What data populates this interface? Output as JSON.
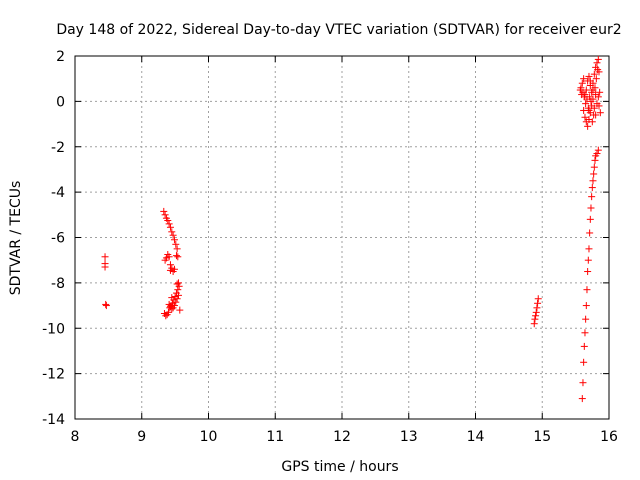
{
  "chart_data": {
    "type": "scatter",
    "title": "Day 148 of 2022, Sidereal Day-to-day VTEC variation (SDTVAR) for receiver eur2",
    "xlabel": "GPS time / hours",
    "ylabel": "SDTVAR / TECUs",
    "xlim": [
      8,
      16
    ],
    "ylim": [
      -14,
      2
    ],
    "x_ticks": [
      8,
      9,
      10,
      11,
      12,
      13,
      14,
      15,
      16
    ],
    "y_ticks": [
      -14,
      -12,
      -10,
      -8,
      -6,
      -4,
      -2,
      0,
      2
    ],
    "x_tick_labels": [
      "8",
      "9",
      "10",
      "11",
      "12",
      "13",
      "14",
      "15",
      "16"
    ],
    "y_tick_labels": [
      "-14",
      "-12",
      "-10",
      "-8",
      "-6",
      "-4",
      "-2",
      "0",
      "2"
    ],
    "grid": true,
    "marker": "+",
    "color": "#ff0000",
    "series": [
      {
        "name": "SDTVAR",
        "points": [
          [
            8.45,
            -6.85
          ],
          [
            8.45,
            -7.15
          ],
          [
            8.45,
            -7.3
          ],
          [
            8.46,
            -8.95
          ],
          [
            8.47,
            -9.0
          ],
          [
            9.33,
            -4.85
          ],
          [
            9.35,
            -5.0
          ],
          [
            9.37,
            -5.15
          ],
          [
            9.39,
            -5.25
          ],
          [
            9.41,
            -5.4
          ],
          [
            9.43,
            -5.55
          ],
          [
            9.45,
            -5.75
          ],
          [
            9.47,
            -5.9
          ],
          [
            9.49,
            -6.1
          ],
          [
            9.51,
            -6.3
          ],
          [
            9.53,
            -6.5
          ],
          [
            9.52,
            -6.8
          ],
          [
            9.54,
            -6.85
          ],
          [
            9.35,
            -7.0
          ],
          [
            9.37,
            -6.9
          ],
          [
            9.39,
            -6.75
          ],
          [
            9.41,
            -6.85
          ],
          [
            9.43,
            -7.2
          ],
          [
            9.45,
            -7.35
          ],
          [
            9.47,
            -7.5
          ],
          [
            9.43,
            -7.45
          ],
          [
            9.49,
            -7.4
          ],
          [
            9.34,
            -9.35
          ],
          [
            9.36,
            -9.45
          ],
          [
            9.38,
            -9.4
          ],
          [
            9.4,
            -9.3
          ],
          [
            9.42,
            -9.1
          ],
          [
            9.44,
            -9.0
          ],
          [
            9.46,
            -8.9
          ],
          [
            9.48,
            -8.75
          ],
          [
            9.5,
            -8.6
          ],
          [
            9.52,
            -8.45
          ],
          [
            9.54,
            -8.3
          ],
          [
            9.56,
            -8.15
          ],
          [
            9.53,
            -8.05
          ],
          [
            9.55,
            -8.0
          ],
          [
            9.41,
            -8.95
          ],
          [
            9.43,
            -9.05
          ],
          [
            9.45,
            -9.15
          ],
          [
            9.47,
            -9.1
          ],
          [
            9.49,
            -9.0
          ],
          [
            9.51,
            -8.85
          ],
          [
            9.53,
            -8.7
          ],
          [
            9.55,
            -8.55
          ],
          [
            9.57,
            -9.2
          ],
          [
            9.45,
            -8.65
          ],
          [
            14.88,
            -9.8
          ],
          [
            14.89,
            -9.6
          ],
          [
            14.9,
            -9.45
          ],
          [
            14.91,
            -9.3
          ],
          [
            14.92,
            -9.1
          ],
          [
            14.93,
            -8.9
          ],
          [
            14.94,
            -8.7
          ],
          [
            15.6,
            -13.1
          ],
          [
            15.61,
            -12.4
          ],
          [
            15.62,
            -11.5
          ],
          [
            15.63,
            -10.8
          ],
          [
            15.64,
            -10.2
          ],
          [
            15.65,
            -9.6
          ],
          [
            15.66,
            -9.0
          ],
          [
            15.67,
            -8.3
          ],
          [
            15.68,
            -7.5
          ],
          [
            15.69,
            -7.0
          ],
          [
            15.7,
            -6.5
          ],
          [
            15.71,
            -5.8
          ],
          [
            15.72,
            -5.2
          ],
          [
            15.73,
            -4.7
          ],
          [
            15.74,
            -4.2
          ],
          [
            15.75,
            -3.8
          ],
          [
            15.76,
            -3.5
          ],
          [
            15.77,
            -3.2
          ],
          [
            15.78,
            -2.9
          ],
          [
            15.79,
            -2.6
          ],
          [
            15.8,
            -2.4
          ],
          [
            15.82,
            -2.3
          ],
          [
            15.84,
            -2.15
          ],
          [
            15.58,
            0.6
          ],
          [
            15.6,
            0.8
          ],
          [
            15.62,
            1.0
          ],
          [
            15.64,
            0.3
          ],
          [
            15.66,
            0.5
          ],
          [
            15.68,
            0.9
          ],
          [
            15.7,
            1.1
          ],
          [
            15.72,
            0.7
          ],
          [
            15.74,
            0.4
          ],
          [
            15.76,
            0.8
          ],
          [
            15.78,
            1.2
          ],
          [
            15.8,
            1.5
          ],
          [
            15.82,
            1.7
          ],
          [
            15.84,
            1.85
          ],
          [
            15.83,
            1.4
          ],
          [
            15.81,
            1.0
          ],
          [
            15.79,
            0.6
          ],
          [
            15.85,
            1.3
          ],
          [
            15.62,
            -0.4
          ],
          [
            15.64,
            -0.7
          ],
          [
            15.66,
            -0.9
          ],
          [
            15.68,
            -1.1
          ],
          [
            15.7,
            -0.8
          ],
          [
            15.72,
            -0.5
          ],
          [
            15.74,
            -0.2
          ],
          [
            15.76,
            0.1
          ],
          [
            15.78,
            -0.3
          ],
          [
            15.8,
            -0.6
          ],
          [
            15.82,
            -0.1
          ],
          [
            15.84,
            0.2
          ],
          [
            15.86,
            0.4
          ],
          [
            15.75,
            -0.9
          ],
          [
            15.77,
            -0.6
          ],
          [
            15.73,
            0.0
          ],
          [
            15.71,
            0.2
          ],
          [
            15.69,
            -0.3
          ],
          [
            15.67,
            0.1
          ],
          [
            15.65,
            -0.1
          ],
          [
            15.63,
            0.2
          ],
          [
            15.61,
            0.4
          ],
          [
            15.59,
            0.3
          ],
          [
            15.57,
            0.5
          ],
          [
            15.87,
            -0.5
          ],
          [
            15.85,
            -0.2
          ],
          [
            15.8,
            0.3
          ],
          [
            15.76,
            0.5
          ],
          [
            15.72,
            0.9
          ],
          [
            15.7,
            -0.4
          ]
        ]
      }
    ]
  }
}
